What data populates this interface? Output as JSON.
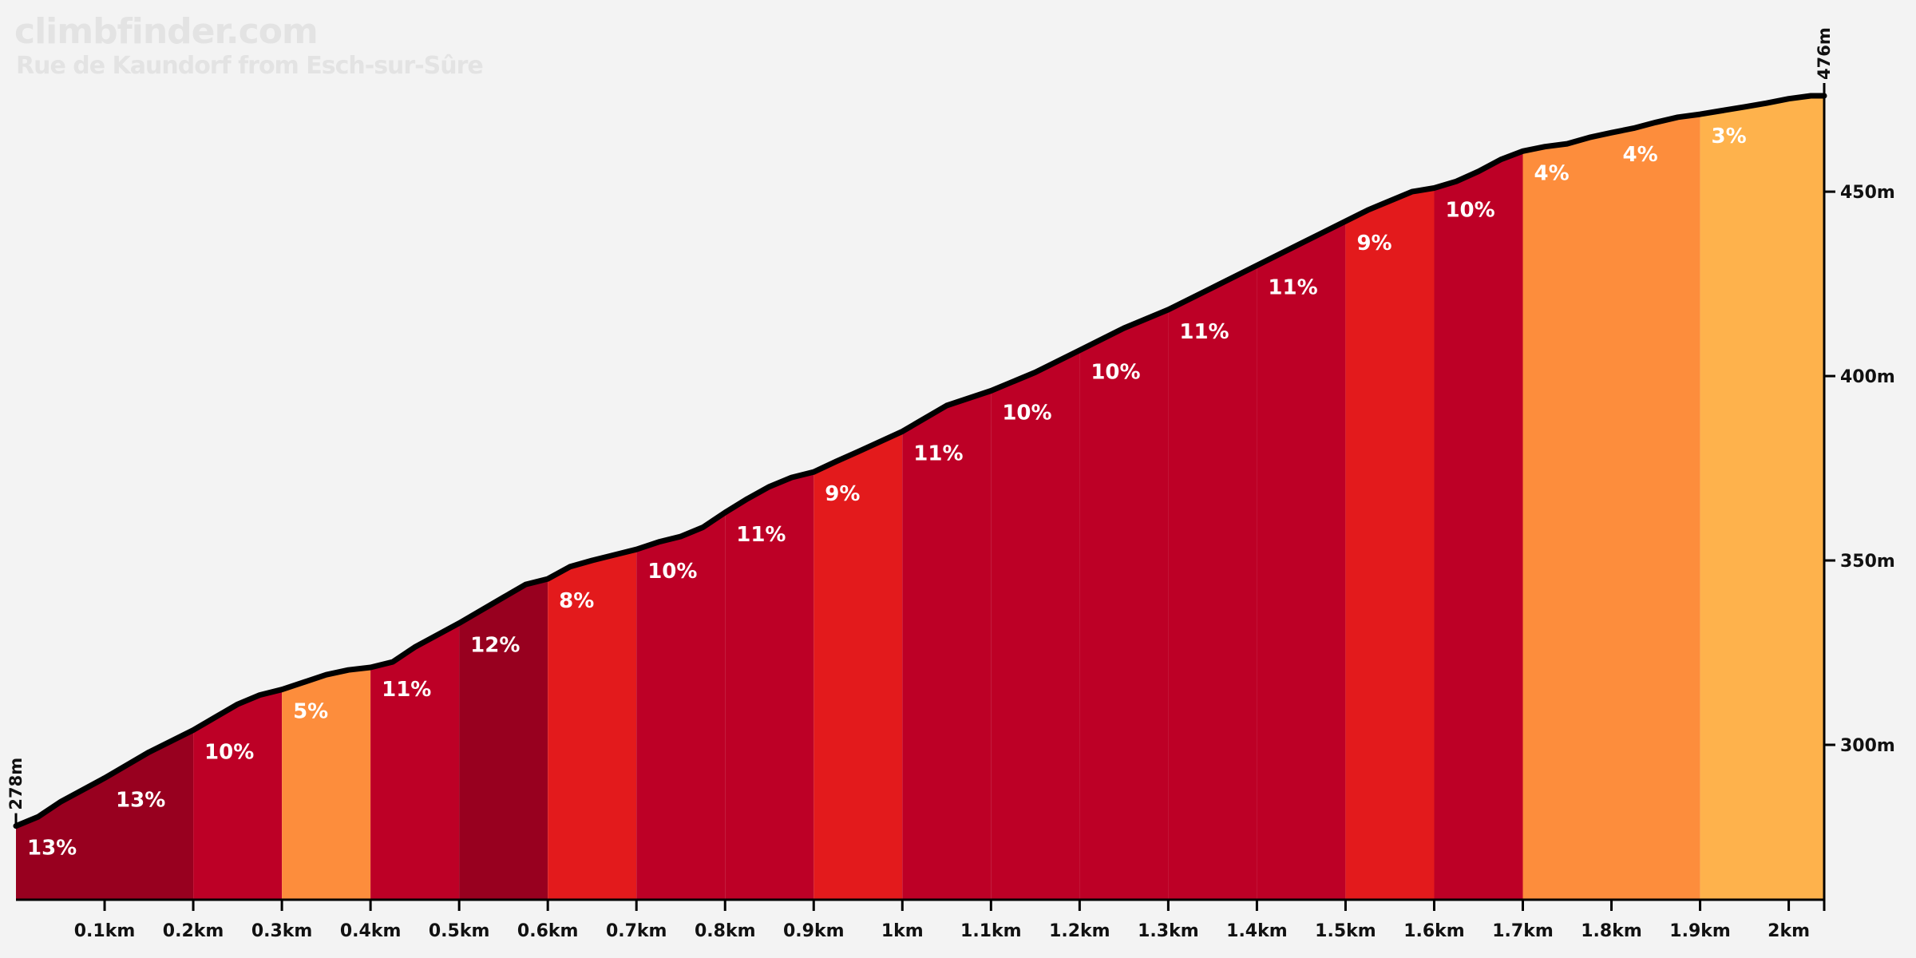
{
  "header": {
    "brand": "climbfinder.com",
    "title": "Rue de Kaundorf from Esch-sur-Sûre"
  },
  "chart_data": {
    "type": "area",
    "xlim": [
      0,
      2.04
    ],
    "ylim": [
      258,
      476
    ],
    "x_ticks": [
      {
        "value": 0.1,
        "label": "0.1km"
      },
      {
        "value": 0.2,
        "label": "0.2km"
      },
      {
        "value": 0.3,
        "label": "0.3km"
      },
      {
        "value": 0.4,
        "label": "0.4km"
      },
      {
        "value": 0.5,
        "label": "0.5km"
      },
      {
        "value": 0.6,
        "label": "0.6km"
      },
      {
        "value": 0.7,
        "label": "0.7km"
      },
      {
        "value": 0.8,
        "label": "0.8km"
      },
      {
        "value": 0.9,
        "label": "0.9km"
      },
      {
        "value": 1.0,
        "label": "1km"
      },
      {
        "value": 1.1,
        "label": "1.1km"
      },
      {
        "value": 1.2,
        "label": "1.2km"
      },
      {
        "value": 1.3,
        "label": "1.3km"
      },
      {
        "value": 1.4,
        "label": "1.4km"
      },
      {
        "value": 1.5,
        "label": "1.5km"
      },
      {
        "value": 1.6,
        "label": "1.6km"
      },
      {
        "value": 1.7,
        "label": "1.7km"
      },
      {
        "value": 1.8,
        "label": "1.8km"
      },
      {
        "value": 1.9,
        "label": "1.9km"
      },
      {
        "value": 2.0,
        "label": "2km"
      }
    ],
    "y_ticks": [
      {
        "value": 300,
        "label": "300m"
      },
      {
        "value": 350,
        "label": "350m"
      },
      {
        "value": 400,
        "label": "400m"
      },
      {
        "value": 450,
        "label": "450m"
      }
    ],
    "start_label": "278m",
    "end_label": "476m",
    "segments": [
      {
        "x0": 0.0,
        "x1": 0.2,
        "grade": "13%",
        "color": "#98001f",
        "label_x": 0.0,
        "label_elev": 278,
        "label_x2": 0.1,
        "label_elev2": 291
      },
      {
        "x0": 0.2,
        "x1": 0.3,
        "grade": "10%",
        "color": "#bd0026",
        "label_x": 0.2,
        "label_elev": 304
      },
      {
        "x0": 0.3,
        "x1": 0.4,
        "grade": "5%",
        "color": "#fd8d3c",
        "label_x": 0.3,
        "label_elev": 315
      },
      {
        "x0": 0.4,
        "x1": 0.5,
        "grade": "11%",
        "color": "#bd0026",
        "label_x": 0.4,
        "label_elev": 321
      },
      {
        "x0": 0.5,
        "x1": 0.6,
        "grade": "12%",
        "color": "#98001f",
        "label_x": 0.5,
        "label_elev": 333
      },
      {
        "x0": 0.6,
        "x1": 0.7,
        "grade": "8%",
        "color": "#e31a1c",
        "label_x": 0.6,
        "label_elev": 345
      },
      {
        "x0": 0.7,
        "x1": 0.8,
        "grade": "10%",
        "color": "#bd0026",
        "label_x": 0.7,
        "label_elev": 353
      },
      {
        "x0": 0.8,
        "x1": 0.9,
        "grade": "11%",
        "color": "#bd0026",
        "label_x": 0.8,
        "label_elev": 363
      },
      {
        "x0": 0.9,
        "x1": 1.0,
        "grade": "9%",
        "color": "#e31a1c",
        "label_x": 0.9,
        "label_elev": 374
      },
      {
        "x0": 1.0,
        "x1": 1.1,
        "grade": "11%",
        "color": "#bd0026",
        "label_x": 1.0,
        "label_elev": 385
      },
      {
        "x0": 1.1,
        "x1": 1.2,
        "grade": "10%",
        "color": "#bd0026",
        "label_x": 1.1,
        "label_elev": 396
      },
      {
        "x0": 1.2,
        "x1": 1.3,
        "grade": "10%",
        "color": "#bd0026",
        "label_x": 1.2,
        "label_elev": 407
      },
      {
        "x0": 1.3,
        "x1": 1.4,
        "grade": "11%",
        "color": "#bd0026",
        "label_x": 1.3,
        "label_elev": 418
      },
      {
        "x0": 1.4,
        "x1": 1.5,
        "grade": "11%",
        "color": "#bd0026",
        "label_x": 1.4,
        "label_elev": 430
      },
      {
        "x0": 1.5,
        "x1": 1.6,
        "grade": "9%",
        "color": "#e31a1c",
        "label_x": 1.5,
        "label_elev": 442
      },
      {
        "x0": 1.6,
        "x1": 1.7,
        "grade": "10%",
        "color": "#bd0026",
        "label_x": 1.6,
        "label_elev": 451
      },
      {
        "x0": 1.7,
        "x1": 1.8,
        "grade": "4%",
        "color": "#fd8d3c",
        "label_x": 1.7,
        "label_elev": 461
      },
      {
        "x0": 1.8,
        "x1": 1.9,
        "grade": "4%",
        "color": "#fd8d3c",
        "label_x": 1.8,
        "label_elev": 466
      },
      {
        "x0": 1.9,
        "x1": 2.04,
        "grade": "3%",
        "color": "#feb24c",
        "label_x": 1.9,
        "label_elev": 471
      }
    ],
    "profile": [
      [
        0.0,
        278
      ],
      [
        0.025,
        280.5
      ],
      [
        0.05,
        284.5
      ],
      [
        0.1,
        291
      ],
      [
        0.15,
        298
      ],
      [
        0.2,
        304
      ],
      [
        0.225,
        307.5
      ],
      [
        0.25,
        311
      ],
      [
        0.275,
        313.5
      ],
      [
        0.3,
        315
      ],
      [
        0.35,
        319
      ],
      [
        0.375,
        320.3
      ],
      [
        0.4,
        321
      ],
      [
        0.425,
        322.5
      ],
      [
        0.45,
        326.5
      ],
      [
        0.5,
        333
      ],
      [
        0.525,
        336.5
      ],
      [
        0.55,
        340
      ],
      [
        0.575,
        343.5
      ],
      [
        0.6,
        345
      ],
      [
        0.625,
        348.3
      ],
      [
        0.65,
        350
      ],
      [
        0.7,
        353
      ],
      [
        0.725,
        355
      ],
      [
        0.75,
        356.5
      ],
      [
        0.775,
        359
      ],
      [
        0.8,
        363
      ],
      [
        0.825,
        366.7
      ],
      [
        0.85,
        370
      ],
      [
        0.875,
        372.5
      ],
      [
        0.9,
        374
      ],
      [
        0.925,
        376.8
      ],
      [
        0.95,
        379.5
      ],
      [
        1.0,
        385
      ],
      [
        1.05,
        392
      ],
      [
        1.1,
        396
      ],
      [
        1.15,
        401
      ],
      [
        1.2,
        407
      ],
      [
        1.25,
        413
      ],
      [
        1.3,
        418
      ],
      [
        1.35,
        424
      ],
      [
        1.4,
        430
      ],
      [
        1.45,
        436
      ],
      [
        1.5,
        442
      ],
      [
        1.525,
        445
      ],
      [
        1.55,
        447.5
      ],
      [
        1.575,
        450
      ],
      [
        1.6,
        451
      ],
      [
        1.625,
        452.8
      ],
      [
        1.65,
        455.5
      ],
      [
        1.675,
        458.7
      ],
      [
        1.7,
        461
      ],
      [
        1.725,
        462.2
      ],
      [
        1.75,
        463
      ],
      [
        1.775,
        464.7
      ],
      [
        1.8,
        466
      ],
      [
        1.825,
        467.2
      ],
      [
        1.85,
        468.8
      ],
      [
        1.875,
        470.2
      ],
      [
        1.9,
        471
      ],
      [
        1.925,
        472
      ],
      [
        1.95,
        473
      ],
      [
        1.975,
        474
      ],
      [
        2.0,
        475.2
      ],
      [
        2.025,
        476
      ],
      [
        2.04,
        476
      ]
    ]
  }
}
